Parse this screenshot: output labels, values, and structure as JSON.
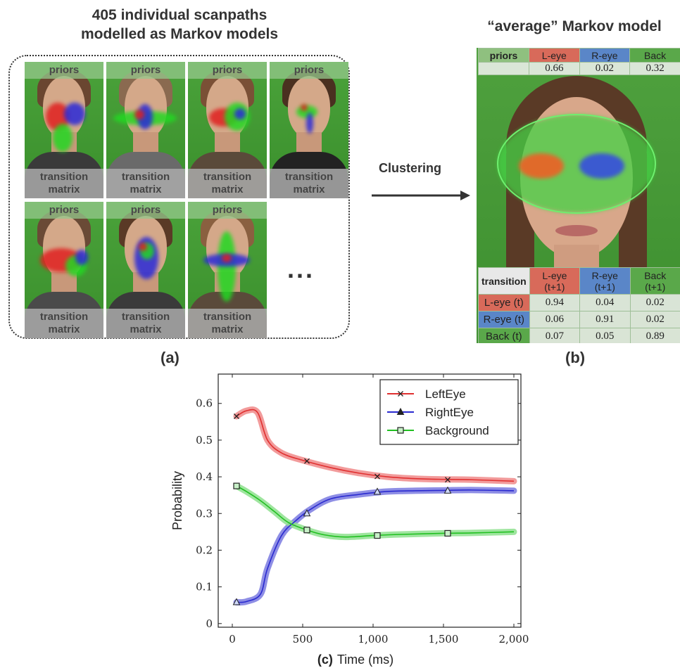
{
  "panel_a": {
    "title_line1": "405 individual scanpaths",
    "title_line2": "modelled as Markov models",
    "tile_top_label": "priors",
    "tile_bottom_label_line1": "transition",
    "tile_bottom_label_line2": "matrix",
    "ellipsis": "...",
    "caption": "(a)"
  },
  "arrow": {
    "label": "Clustering"
  },
  "panel_b": {
    "title": "“average” Markov model",
    "priors_label": "priors",
    "columns": [
      "L-eye",
      "R-eye",
      "Back"
    ],
    "column_colors": [
      "#d86a5a",
      "#5a86c8",
      "#5aa84a"
    ],
    "priors_values": [
      "0.66",
      "0.02",
      "0.32"
    ],
    "transition_label": "transition",
    "transition_columns": [
      {
        "line1": "L-eye",
        "line2": "(t+1)"
      },
      {
        "line1": "R-eye",
        "line2": "(t+1)"
      },
      {
        "line1": "Back",
        "line2": "(t+1)"
      }
    ],
    "rows": [
      {
        "label": "L-eye (t)",
        "values": [
          "0.94",
          "0.04",
          "0.02"
        ]
      },
      {
        "label": "R-eye (t)",
        "values": [
          "0.06",
          "0.91",
          "0.02"
        ]
      },
      {
        "label": "Back (t)",
        "values": [
          "0.07",
          "0.05",
          "0.89"
        ]
      }
    ],
    "caption": "(b)"
  },
  "chart_data": {
    "type": "line",
    "xlabel_prefix": "(c)",
    "xlabel": "Time (ms)",
    "ylabel": "Probability",
    "xlim": [
      -100,
      2050
    ],
    "ylim": [
      -0.01,
      0.68
    ],
    "xticks": [
      0,
      500,
      1000,
      1500,
      2000
    ],
    "xtick_labels": [
      "0",
      "500",
      "1,000",
      "1,500",
      "2,000"
    ],
    "yticks": [
      0,
      0.1,
      0.2,
      0.3,
      0.4,
      0.5,
      0.6
    ],
    "ytick_labels": [
      "0",
      "0.1",
      "0.2",
      "0.3",
      "0.4",
      "0.5",
      "0.6"
    ],
    "legend_position": "top-right",
    "series": [
      {
        "name": "LeftEye",
        "color": "#e03030",
        "band_color": "#f08a8a",
        "marker": "x",
        "x": [
          30,
          100,
          180,
          250,
          350,
          500,
          700,
          900,
          1100,
          1300,
          1500,
          1700,
          2000
        ],
        "y": [
          0.565,
          0.58,
          0.575,
          0.5,
          0.465,
          0.445,
          0.425,
          0.41,
          0.4,
          0.395,
          0.393,
          0.392,
          0.388
        ],
        "marker_x": [
          30,
          530,
          1030,
          1530
        ],
        "marker_y": [
          0.565,
          0.443,
          0.401,
          0.392
        ]
      },
      {
        "name": "RightEye",
        "color": "#2a2ad0",
        "band_color": "#7a7ae0",
        "marker": "triangle",
        "x": [
          30,
          100,
          200,
          250,
          350,
          450,
          550,
          700,
          900,
          1100,
          1300,
          1500,
          1700,
          2000
        ],
        "y": [
          0.058,
          0.06,
          0.08,
          0.15,
          0.24,
          0.28,
          0.31,
          0.34,
          0.352,
          0.36,
          0.362,
          0.363,
          0.364,
          0.362
        ],
        "marker_x": [
          30,
          530,
          1030,
          1530
        ],
        "marker_y": [
          0.058,
          0.3,
          0.359,
          0.362
        ]
      },
      {
        "name": "Background",
        "color": "#20c020",
        "band_color": "#8ee08e",
        "marker": "square",
        "x": [
          30,
          100,
          200,
          300,
          400,
          530,
          650,
          800,
          1000,
          1200,
          1500,
          1700,
          2000
        ],
        "y": [
          0.375,
          0.36,
          0.335,
          0.305,
          0.275,
          0.255,
          0.242,
          0.236,
          0.24,
          0.243,
          0.246,
          0.247,
          0.25
        ],
        "marker_x": [
          30,
          530,
          1030,
          1530
        ],
        "marker_y": [
          0.375,
          0.255,
          0.24,
          0.246
        ]
      }
    ]
  }
}
